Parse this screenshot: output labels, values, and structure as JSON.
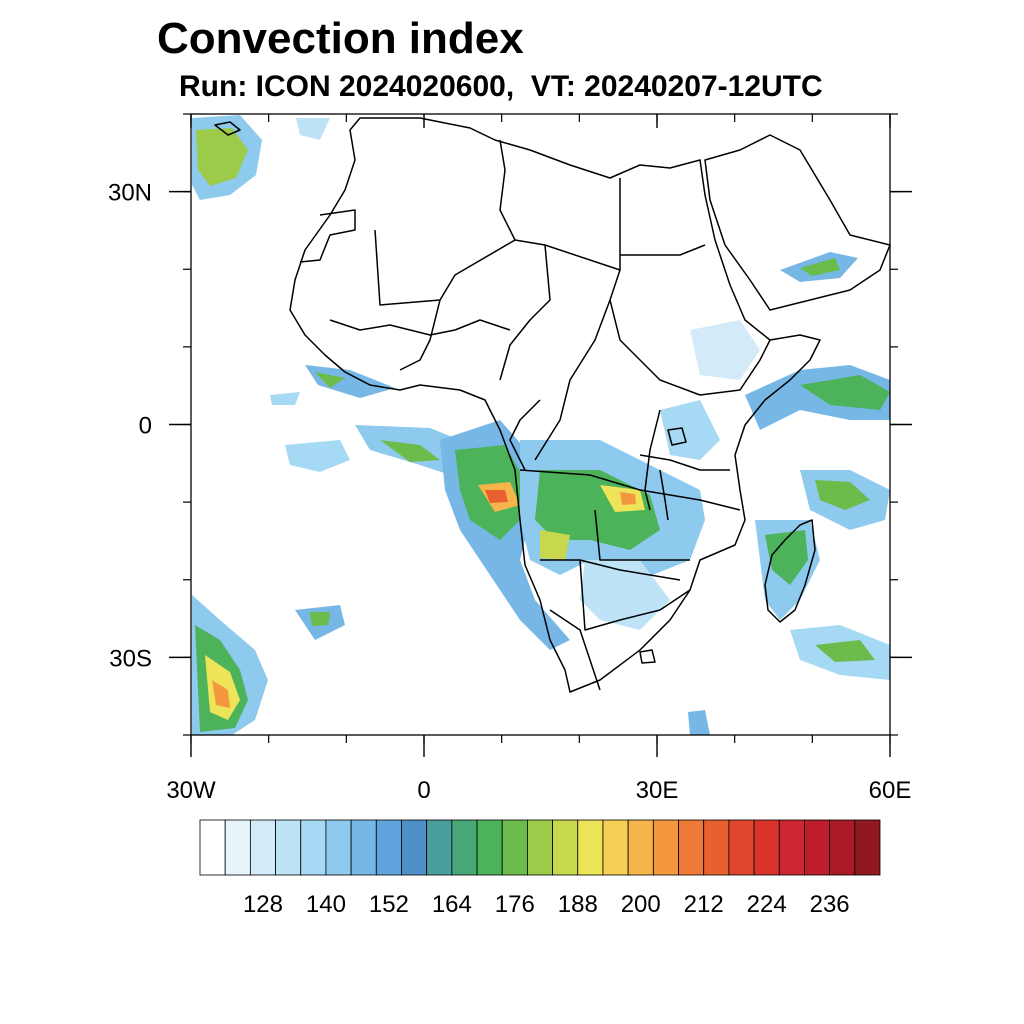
{
  "header": {
    "title": "Convection index",
    "subtitle": "Run: ICON 2024020600,  VT: 20240207-12UTC"
  },
  "map": {
    "lon_range": [
      -30,
      60
    ],
    "lat_range": [
      -40,
      40
    ],
    "y_ticks": [
      {
        "lat": 30,
        "label": "30N"
      },
      {
        "lat": 0,
        "label": "0"
      },
      {
        "lat": -30,
        "label": "30S"
      }
    ],
    "x_ticks": [
      {
        "lon": -30,
        "label": "30W"
      },
      {
        "lon": 0,
        "label": "0"
      },
      {
        "lon": 30,
        "label": "30E"
      },
      {
        "lon": 60,
        "label": "60E"
      }
    ]
  },
  "colorbar": {
    "colors": [
      "#ffffff",
      "#e8f4fb",
      "#d3ebf8",
      "#bee3f6",
      "#a6d9f4",
      "#8ec9ee",
      "#76b7e5",
      "#5fa4dc",
      "#4e90c7",
      "#4a9e9c",
      "#48a878",
      "#4cb35a",
      "#6bbc4a",
      "#9ccb4a",
      "#c8d84c",
      "#eee45a",
      "#f6cf55",
      "#f6b54a",
      "#f49840",
      "#ef7a38",
      "#e85f30",
      "#e1472c",
      "#d9342c",
      "#cd2630",
      "#bd1d2c",
      "#a91a26",
      "#921820"
    ],
    "tick_labels": [
      "128",
      "140",
      "152",
      "164",
      "176",
      "188",
      "200",
      "212",
      "224",
      "236"
    ]
  }
}
